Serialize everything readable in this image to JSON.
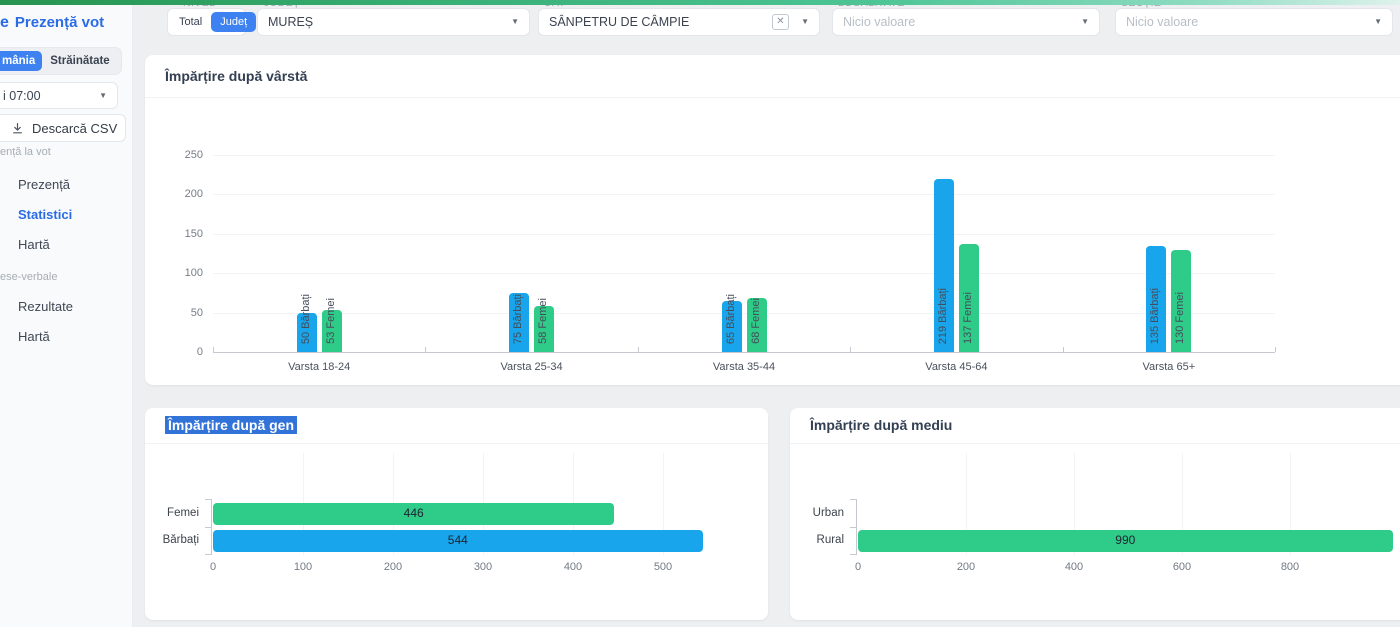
{
  "colors": {
    "primary_blue": "#2b6ce6",
    "pill_blue": "#3d82f0",
    "male_blue": "#19a5ec",
    "female_green": "#2fcb88",
    "selection_highlight": "#3173d8",
    "topbar_gradient": [
      "#27944f",
      "#4cc494",
      "#dff2ec"
    ]
  },
  "sidebar": {
    "logo_fragment": "e",
    "title": "Prezență vot",
    "tabs": [
      {
        "label": "mânia",
        "selected": true
      },
      {
        "label": "Străinătate",
        "selected": false
      }
    ],
    "time_select_value": "i 07:00",
    "download_csv_label": "Descarcă CSV",
    "sections": [
      {
        "label": "ență la vot",
        "items": [
          {
            "label": "Prezență",
            "active": false
          },
          {
            "label": "Statistici",
            "active": true
          },
          {
            "label": "Hartă",
            "active": false
          }
        ]
      },
      {
        "label": "ese-verbale",
        "items": [
          {
            "label": "Rezultate",
            "active": false
          },
          {
            "label": "Hartă",
            "active": false
          }
        ]
      }
    ]
  },
  "filters": {
    "nivel": {
      "label": "NIVEL",
      "options": [
        "Total",
        "Județ"
      ],
      "selected": "Județ"
    },
    "judet": {
      "label": "JUDEȚ",
      "value": "MUREȘ"
    },
    "uat": {
      "label": "UAT",
      "value": "SÂNPETRU DE CÂMPIE",
      "clearable": true
    },
    "localitate": {
      "label": "LOCALITATE",
      "placeholder": "Nicio valoare"
    },
    "sectie": {
      "label": "SECȚIE",
      "placeholder": "Nicio valoare"
    }
  },
  "chart_data": [
    {
      "id": "varsta",
      "type": "bar",
      "title": "Împărțire după vârstă",
      "categories": [
        "Varsta 18-24",
        "Varsta 25-34",
        "Varsta 35-44",
        "Varsta 45-64",
        "Varsta 65+"
      ],
      "series": [
        {
          "name": "Bărbați",
          "color": "#19a5ec",
          "values": [
            50,
            75,
            65,
            219,
            135
          ]
        },
        {
          "name": "Femei",
          "color": "#2fcb88",
          "values": [
            53,
            58,
            68,
            137,
            130
          ]
        }
      ],
      "bar_label_format": "{value} {series}",
      "ylim": [
        0,
        250
      ],
      "yticks": [
        0,
        50,
        100,
        150,
        200,
        250
      ],
      "grid": true,
      "legend": "none"
    },
    {
      "id": "gen",
      "type": "bar-horizontal",
      "title": "Împărțire după gen",
      "title_text_selected": true,
      "categories": [
        "Femei",
        "Bărbați"
      ],
      "values": [
        446,
        544
      ],
      "bar_colors": [
        "#2fcb88",
        "#19a5ec"
      ],
      "xlim": [
        0,
        560
      ],
      "xticks": [
        0,
        100,
        200,
        300,
        400,
        500
      ],
      "grid": true
    },
    {
      "id": "mediu",
      "type": "bar-horizontal",
      "title": "Împărțire după mediu",
      "categories": [
        "Urban",
        "Rural"
      ],
      "values": [
        0,
        990
      ],
      "bar_colors": [
        "#2fcb88",
        "#2fcb88"
      ],
      "xlim": [
        0,
        1035
      ],
      "xticks": [
        0,
        200,
        400,
        600,
        800
      ],
      "grid": true
    }
  ]
}
